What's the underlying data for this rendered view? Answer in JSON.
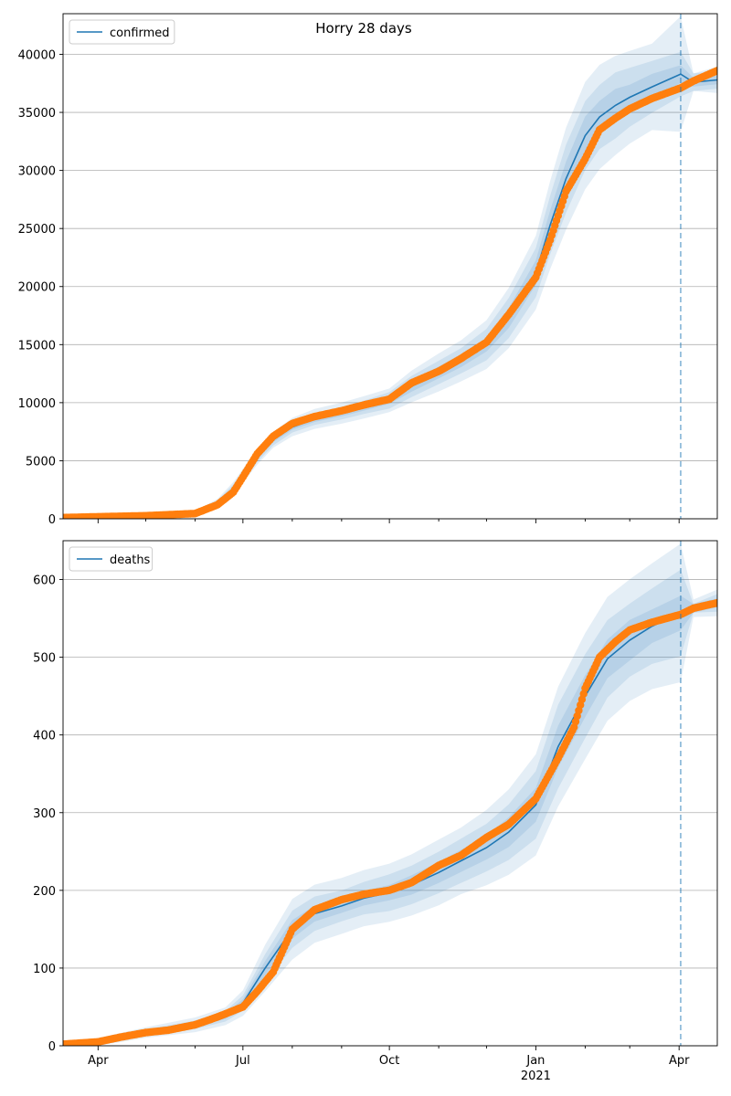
{
  "figure": {
    "title": "Horry 28 days"
  },
  "colors": {
    "fit_line": "#1f77b4",
    "band": "#1f77b4",
    "observed": "#ff7f0e",
    "grid": "#b0b0b0",
    "cutoff": "#1f77b4"
  },
  "chart_data": [
    {
      "type": "line",
      "name": "confirmed-panel",
      "legend": {
        "label": "confirmed",
        "placement": "top-left"
      },
      "xlim": [
        "2020-03-10",
        "2021-04-25"
      ],
      "ylim": [
        0,
        43500
      ],
      "yticks": [
        0,
        5000,
        10000,
        15000,
        20000,
        25000,
        30000,
        35000,
        40000
      ],
      "grid": "y",
      "forecast_cutoff": "2021-04-02",
      "fit": {
        "x": [
          "2020-03-10",
          "2020-04-01",
          "2020-05-01",
          "2020-06-01",
          "2020-06-15",
          "2020-06-25",
          "2020-07-01",
          "2020-07-10",
          "2020-07-20",
          "2020-08-01",
          "2020-08-15",
          "2020-09-01",
          "2020-09-15",
          "2020-10-01",
          "2020-10-15",
          "2020-11-01",
          "2020-11-15",
          "2020-12-01",
          "2020-12-15",
          "2021-01-01",
          "2021-01-10",
          "2021-01-20",
          "2021-02-01",
          "2021-02-10",
          "2021-02-20",
          "2021-03-01",
          "2021-03-15",
          "2021-04-02",
          "2021-04-10",
          "2021-04-25"
        ],
        "y": [
          100,
          150,
          250,
          500,
          1400,
          2600,
          3700,
          5300,
          6800,
          7900,
          8600,
          9100,
          9600,
          10200,
          11400,
          12600,
          13600,
          15000,
          17300,
          21200,
          25300,
          29300,
          33000,
          34600,
          35600,
          36300,
          37200,
          38300,
          37600,
          37800
        ],
        "band_inner": [
          0.03,
          0.03,
          0.03,
          0.04,
          0.07,
          0.07,
          0.05,
          0.04,
          0.03,
          0.03,
          0.03,
          0.03,
          0.03,
          0.03,
          0.04,
          0.04,
          0.04,
          0.04,
          0.05,
          0.05,
          0.05,
          0.05,
          0.05,
          0.04,
          0.04,
          0.03,
          0.03,
          0.02,
          0.01,
          0.01
        ],
        "band_mid": [
          0.07,
          0.06,
          0.06,
          0.08,
          0.14,
          0.14,
          0.1,
          0.08,
          0.07,
          0.06,
          0.06,
          0.06,
          0.06,
          0.07,
          0.08,
          0.08,
          0.08,
          0.09,
          0.1,
          0.1,
          0.1,
          0.1,
          0.09,
          0.08,
          0.08,
          0.07,
          0.06,
          0.05,
          0.02,
          0.02
        ],
        "band_outer": [
          0.1,
          0.1,
          0.1,
          0.12,
          0.22,
          0.22,
          0.16,
          0.12,
          0.1,
          0.1,
          0.1,
          0.1,
          0.1,
          0.1,
          0.12,
          0.13,
          0.13,
          0.14,
          0.15,
          0.15,
          0.15,
          0.15,
          0.14,
          0.13,
          0.12,
          0.11,
          0.1,
          0.13,
          0.02,
          0.03
        ]
      },
      "observed": {
        "x": [
          "2020-03-10",
          "2020-04-01",
          "2020-05-01",
          "2020-06-01",
          "2020-06-15",
          "2020-06-25",
          "2020-07-01",
          "2020-07-10",
          "2020-07-20",
          "2020-08-01",
          "2020-08-15",
          "2020-09-01",
          "2020-09-15",
          "2020-10-01",
          "2020-10-15",
          "2020-11-01",
          "2020-11-15",
          "2020-12-01",
          "2020-12-15",
          "2021-01-01",
          "2021-01-10",
          "2021-01-20",
          "2021-02-01",
          "2021-02-10",
          "2021-02-20",
          "2021-03-01",
          "2021-03-15",
          "2021-04-02",
          "2021-04-10",
          "2021-04-25"
        ],
        "y": [
          100,
          170,
          260,
          450,
          1200,
          2300,
          3600,
          5600,
          7100,
          8200,
          8800,
          9300,
          9800,
          10300,
          11700,
          12700,
          13800,
          15200,
          17600,
          20800,
          24000,
          28200,
          31000,
          33500,
          34500,
          35300,
          36200,
          37100,
          37700,
          38600
        ]
      }
    },
    {
      "type": "line",
      "name": "deaths-panel",
      "legend": {
        "label": "deaths",
        "placement": "top-left"
      },
      "xlim": [
        "2020-03-10",
        "2021-04-25"
      ],
      "ylim": [
        0,
        650
      ],
      "yticks": [
        0,
        100,
        200,
        300,
        400,
        500,
        600
      ],
      "grid": "y",
      "forecast_cutoff": "2021-04-02",
      "xticks": [
        {
          "date": "2020-04-01",
          "label": "Apr",
          "year": ""
        },
        {
          "date": "2020-07-01",
          "label": "Jul",
          "year": ""
        },
        {
          "date": "2020-10-01",
          "label": "Oct",
          "year": ""
        },
        {
          "date": "2021-01-01",
          "label": "Jan",
          "year": "2021"
        },
        {
          "date": "2021-04-01",
          "label": "Apr",
          "year": ""
        }
      ],
      "fit": {
        "x": [
          "2020-03-10",
          "2020-04-01",
          "2020-05-01",
          "2020-06-01",
          "2020-06-20",
          "2020-07-01",
          "2020-07-15",
          "2020-08-01",
          "2020-08-15",
          "2020-09-01",
          "2020-09-15",
          "2020-10-01",
          "2020-10-15",
          "2020-11-01",
          "2020-11-15",
          "2020-12-01",
          "2020-12-15",
          "2021-01-01",
          "2021-01-15",
          "2021-02-01",
          "2021-02-15",
          "2021-03-01",
          "2021-03-15",
          "2021-04-02",
          "2021-04-10",
          "2021-04-25"
        ],
        "y": [
          2,
          5,
          17,
          27,
          38,
          55,
          100,
          150,
          170,
          180,
          190,
          197,
          207,
          223,
          238,
          255,
          275,
          310,
          385,
          450,
          498,
          522,
          540,
          557,
          563,
          570
        ],
        "band_inner": [
          0.5,
          0.3,
          0.12,
          0.1,
          0.09,
          0.09,
          0.09,
          0.08,
          0.06,
          0.05,
          0.05,
          0.05,
          0.06,
          0.06,
          0.06,
          0.06,
          0.07,
          0.07,
          0.07,
          0.06,
          0.05,
          0.05,
          0.04,
          0.04,
          0.01,
          0.01
        ],
        "band_mid": [
          1.0,
          0.6,
          0.25,
          0.2,
          0.18,
          0.18,
          0.18,
          0.16,
          0.13,
          0.11,
          0.11,
          0.12,
          0.12,
          0.12,
          0.12,
          0.12,
          0.13,
          0.14,
          0.14,
          0.12,
          0.1,
          0.09,
          0.09,
          0.1,
          0.01,
          0.02
        ],
        "band_outer": [
          2.0,
          1.0,
          0.4,
          0.35,
          0.3,
          0.3,
          0.3,
          0.26,
          0.22,
          0.2,
          0.19,
          0.19,
          0.19,
          0.19,
          0.18,
          0.19,
          0.2,
          0.21,
          0.2,
          0.18,
          0.16,
          0.15,
          0.15,
          0.16,
          0.02,
          0.03
        ]
      },
      "observed": {
        "x": [
          "2020-03-10",
          "2020-04-01",
          "2020-04-15",
          "2020-05-01",
          "2020-05-15",
          "2020-06-01",
          "2020-06-15",
          "2020-07-01",
          "2020-07-10",
          "2020-07-20",
          "2020-08-01",
          "2020-08-15",
          "2020-09-01",
          "2020-09-15",
          "2020-10-01",
          "2020-10-15",
          "2020-11-01",
          "2020-11-15",
          "2020-12-01",
          "2020-12-15",
          "2021-01-01",
          "2021-01-15",
          "2021-01-25",
          "2021-02-01",
          "2021-02-10",
          "2021-02-20",
          "2021-03-01",
          "2021-03-15",
          "2021-04-02",
          "2021-04-10",
          "2021-04-25"
        ],
        "y": [
          2,
          5,
          11,
          17,
          20,
          27,
          37,
          50,
          70,
          95,
          150,
          175,
          188,
          195,
          200,
          210,
          232,
          245,
          268,
          285,
          318,
          370,
          410,
          460,
          500,
          520,
          535,
          545,
          555,
          563,
          570
        ]
      }
    }
  ]
}
